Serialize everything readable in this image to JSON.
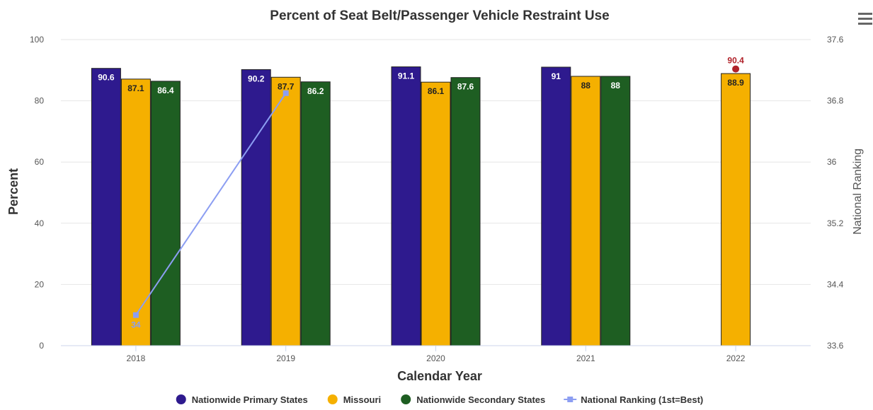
{
  "chart_data": {
    "type": "bar",
    "title": "Percent of Seat Belt/Passenger Vehicle Restraint Use",
    "xlabel": "Calendar Year",
    "ylabel": "Percent",
    "y2label": "National Ranking",
    "categories": [
      "2018",
      "2019",
      "2020",
      "2021",
      "2022"
    ],
    "ylim": [
      0,
      100
    ],
    "yticks": [
      0,
      20,
      40,
      60,
      80,
      100
    ],
    "y2lim": [
      33.6,
      37.6
    ],
    "y2ticks": [
      33.6,
      34.4,
      35.2,
      36,
      36.8,
      37.6
    ],
    "grid": true,
    "legend_position": "bottom",
    "series": [
      {
        "name": "Nationwide Primary States",
        "color": "#2e1a8e",
        "values": [
          90.6,
          90.2,
          91.1,
          91,
          null
        ]
      },
      {
        "name": "Missouri",
        "color": "#f5b000",
        "values": [
          87.1,
          87.7,
          86.1,
          88,
          88.9
        ]
      },
      {
        "name": "Nationwide Secondary States",
        "color": "#1e5e22",
        "values": [
          86.4,
          86.2,
          87.6,
          88,
          null
        ]
      }
    ],
    "line_series": {
      "name": "National Ranking (1st=Best)",
      "color": "#8c9ef2",
      "axis": "right",
      "points": [
        {
          "x": "2018",
          "y": 34,
          "label": "34"
        },
        {
          "x": "2019",
          "y": 36.9,
          "label": ""
        }
      ]
    },
    "extra_points": [
      {
        "x": "2022",
        "y": 90.4,
        "label": "90.4",
        "color": "#b0222a"
      }
    ]
  },
  "menu": {
    "icon": "hamburger-menu-icon"
  }
}
